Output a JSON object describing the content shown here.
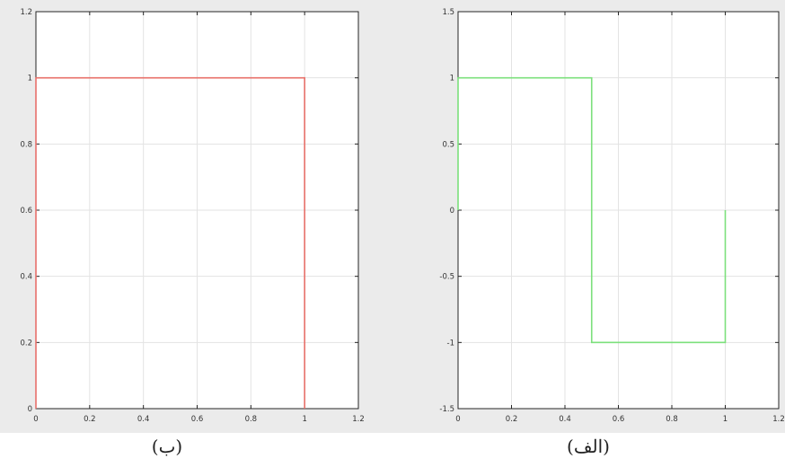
{
  "chart_data": [
    {
      "type": "line",
      "title": "",
      "xlabel": "",
      "ylabel": "",
      "xlim": [
        0,
        1.2
      ],
      "ylim": [
        0,
        1.2
      ],
      "xticks": [
        0,
        0.2,
        0.4,
        0.6,
        0.8,
        1,
        1.2
      ],
      "xtick_labels": [
        "0",
        "0.2",
        "0.4",
        "0.6",
        "0.8",
        "1",
        "1.2"
      ],
      "yticks": [
        0,
        0.2,
        0.4,
        0.6,
        0.8,
        1,
        1.2
      ],
      "ytick_labels": [
        "0",
        "0.2",
        "0.4",
        "0.6",
        "0.8",
        "1",
        "1.2"
      ],
      "grid": true,
      "series": [
        {
          "x": [
            0,
            0,
            1,
            1
          ],
          "y": [
            0,
            1,
            1,
            0
          ],
          "color": "#e8706a"
        }
      ],
      "caption": "(ب)"
    },
    {
      "type": "line",
      "title": "",
      "xlabel": "",
      "ylabel": "",
      "xlim": [
        0,
        1.2
      ],
      "ylim": [
        -1.5,
        1.5
      ],
      "xticks": [
        0,
        0.2,
        0.4,
        0.6,
        0.8,
        1,
        1.2
      ],
      "xtick_labels": [
        "0",
        "0.2",
        "0.4",
        "0.6",
        "0.8",
        "1",
        "1.2"
      ],
      "yticks": [
        -1.5,
        -1,
        -0.5,
        0,
        0.5,
        1,
        1.5
      ],
      "ytick_labels": [
        "-1.5",
        "-1",
        "-0.5",
        "0",
        "0.5",
        "1",
        "1.5"
      ],
      "grid": true,
      "series": [
        {
          "x": [
            0,
            0,
            0.5,
            0.5,
            1,
            1
          ],
          "y": [
            0,
            1,
            1,
            -1,
            -1,
            0
          ],
          "color": "#7ce07c"
        }
      ],
      "caption": "(الف)"
    }
  ]
}
